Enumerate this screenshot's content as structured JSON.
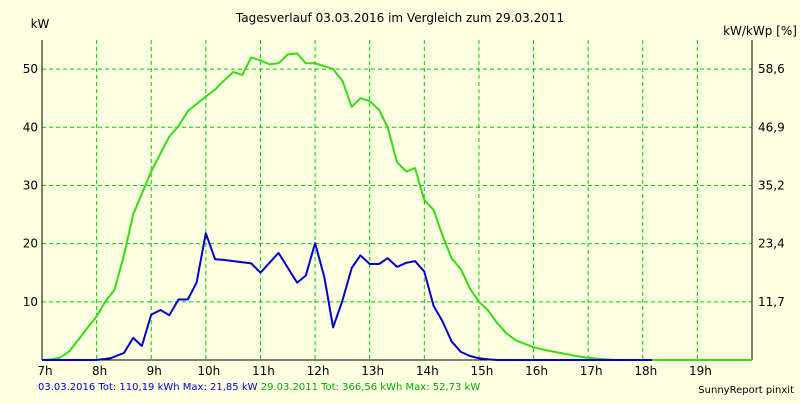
{
  "chart_data": {
    "type": "line",
    "title": "Tagesverlauf 03.03.2016 im Vergleich zum 29.03.2011",
    "ylabel": "kW",
    "ylabel_right": "kW/kWp [%]",
    "ylim": [
      0,
      55
    ],
    "yticks": [
      10,
      20,
      30,
      40,
      50
    ],
    "yticks_right": [
      "11,7",
      "23,4",
      "35,2",
      "46,9",
      "58,6"
    ],
    "xlim": [
      7,
      20
    ],
    "xticks": [
      "7h",
      "8h",
      "9h",
      "10h",
      "11h",
      "12h",
      "13h",
      "14h",
      "15h",
      "16h",
      "17h",
      "18h",
      "19h"
    ],
    "grid": true,
    "series": [
      {
        "name": "03.03.2016",
        "color": "#0000cc",
        "x": [
          7.0,
          7.5,
          8.0,
          8.25,
          8.5,
          8.67,
          8.83,
          9.0,
          9.17,
          9.33,
          9.5,
          9.67,
          9.83,
          10.0,
          10.17,
          10.33,
          10.5,
          10.67,
          10.83,
          11.0,
          11.33,
          11.67,
          11.83,
          12.0,
          12.17,
          12.33,
          12.5,
          12.67,
          12.83,
          13.0,
          13.17,
          13.33,
          13.5,
          13.67,
          13.83,
          14.0,
          14.17,
          14.33,
          14.5,
          14.67,
          14.83,
          15.0,
          15.17,
          15.33,
          15.5,
          15.67,
          15.83,
          16.0,
          16.17,
          16.33,
          16.5,
          16.67,
          16.83,
          17.0,
          17.33,
          17.67,
          18.0,
          18.17
        ],
        "values": [
          0.0,
          0.0,
          0.0,
          0.3,
          1.2,
          3.8,
          2.4,
          7.8,
          8.6,
          7.7,
          10.4,
          10.4,
          13.3,
          21.8,
          17.3,
          17.2,
          17.0,
          16.8,
          16.6,
          15.0,
          18.4,
          13.3,
          14.5,
          20.1,
          14.2,
          5.6,
          10.2,
          15.8,
          18.0,
          16.5,
          16.5,
          17.5,
          16.0,
          16.7,
          17.0,
          15.2,
          9.3,
          6.7,
          3.2,
          1.4,
          0.7,
          0.3,
          0.1,
          0.0,
          0.0,
          0.0,
          0.0,
          0.0,
          0.0,
          0.0,
          0.0,
          0.0,
          0.0,
          0.0,
          0.0,
          0.0,
          0.0,
          0.0
        ]
      },
      {
        "name": "29.03.2011",
        "color": "#33dd11",
        "x": [
          7.0,
          7.17,
          7.33,
          7.5,
          7.67,
          7.83,
          8.0,
          8.17,
          8.33,
          8.5,
          8.67,
          8.83,
          9.0,
          9.17,
          9.33,
          9.5,
          9.67,
          9.83,
          10.0,
          10.17,
          10.33,
          10.5,
          10.67,
          10.83,
          11.0,
          11.17,
          11.33,
          11.5,
          11.67,
          11.83,
          12.0,
          12.17,
          12.33,
          12.5,
          12.67,
          12.83,
          13.0,
          13.17,
          13.33,
          13.5,
          13.67,
          13.83,
          14.0,
          14.17,
          14.33,
          14.5,
          14.67,
          14.83,
          15.0,
          15.17,
          15.33,
          15.5,
          15.67,
          15.83,
          16.0,
          16.17,
          16.33,
          16.5,
          16.67,
          16.83,
          17.0,
          17.17,
          17.33,
          17.5,
          17.67,
          17.83,
          18.0,
          18.33,
          18.67,
          19.0,
          19.33,
          19.67,
          20.0
        ],
        "values": [
          0.0,
          0.1,
          0.4,
          1.5,
          3.5,
          5.5,
          7.5,
          10.2,
          12.1,
          18.0,
          25.0,
          28.6,
          32.4,
          35.5,
          38.4,
          40.2,
          42.8,
          44.0,
          45.3,
          46.5,
          48.0,
          49.5,
          49.0,
          52.0,
          51.5,
          50.8,
          51.0,
          52.5,
          52.7,
          51.0,
          51.0,
          50.5,
          50.0,
          48.0,
          43.5,
          45.0,
          44.5,
          43.0,
          40.0,
          34.0,
          32.4,
          33.0,
          27.5,
          25.8,
          21.5,
          17.5,
          15.6,
          12.4,
          10.0,
          8.5,
          6.4,
          4.6,
          3.4,
          2.8,
          2.2,
          1.8,
          1.5,
          1.2,
          0.9,
          0.6,
          0.4,
          0.2,
          0.1,
          0.0,
          0.0,
          0.0,
          0.0,
          0.0,
          0.0,
          0.0,
          0.0,
          0.0,
          0.0
        ]
      }
    ]
  },
  "footer": {
    "blue_text": "03.03.2016 Tot: 110,19 kWh Max: 21,85 kW",
    "green_text": "29.03.2011 Tot: 366,56 kWh Max: 52,73 kW",
    "right_text": "SunnyReport pinxit"
  },
  "colors": {
    "background": "#ffffe1",
    "grid": "#00cc00",
    "axis": "#000000"
  }
}
